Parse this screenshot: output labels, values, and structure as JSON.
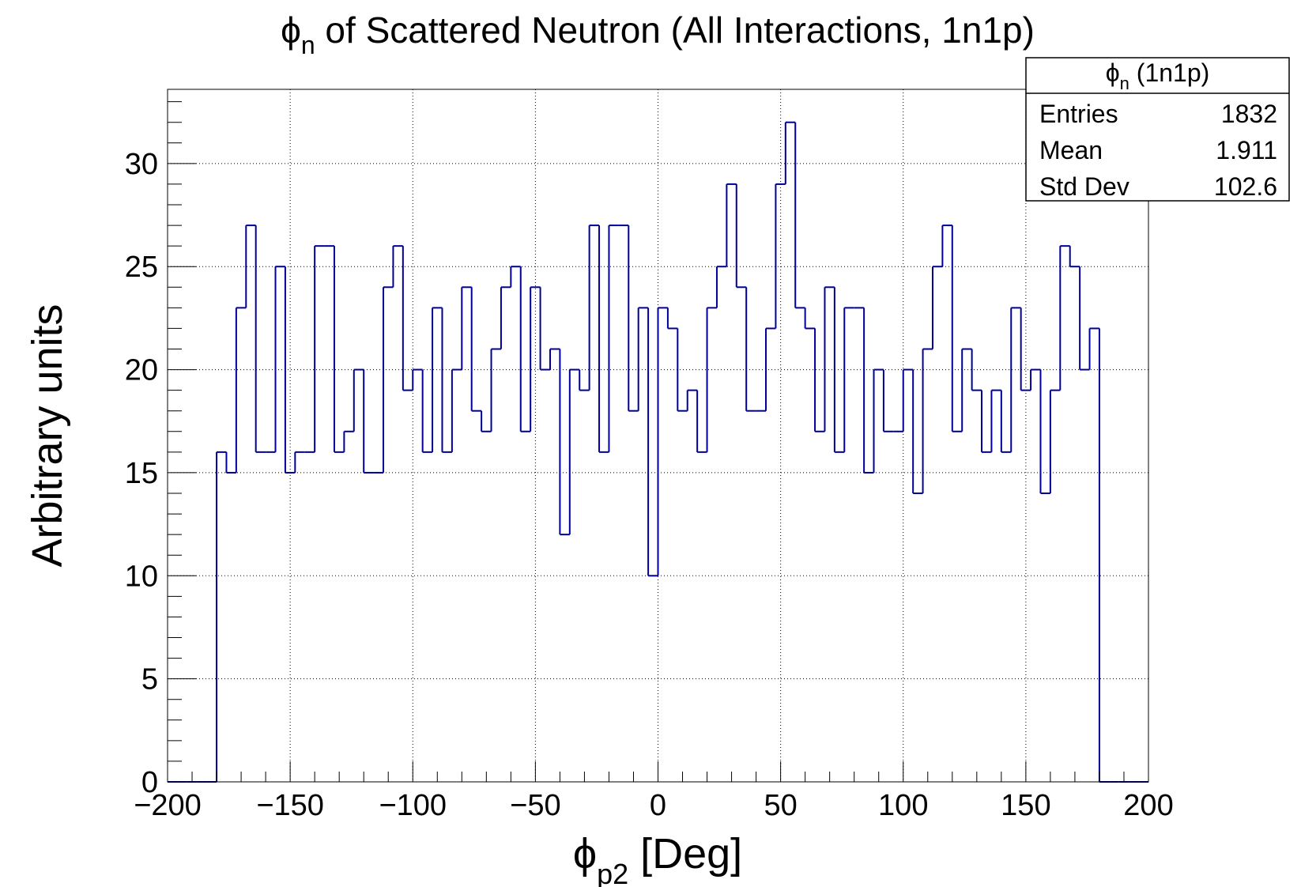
{
  "chart_data": {
    "type": "histogram",
    "title": {
      "symbol": "ϕ",
      "subscript": "n",
      "text": " of Scattered Neutron (All Interactions, 1n1p)"
    },
    "x_label": {
      "symbol": "ϕ",
      "subscript": "p2",
      "text": " [Deg]"
    },
    "y_label": "Arbitrary units",
    "color": "#000099",
    "grid": true,
    "bins": [
      -200,
      -196,
      -192,
      -188,
      -184,
      -180,
      -176,
      -172,
      -168,
      -164,
      -160,
      -156,
      -152,
      -148,
      -144,
      -140,
      -136,
      -132,
      -128,
      -124,
      -120,
      -116,
      -112,
      -108,
      -104,
      -100,
      -96,
      -92,
      -88,
      -84,
      -80,
      -76,
      -72,
      -68,
      -64,
      -60,
      -56,
      -52,
      -48,
      -44,
      -40,
      -36,
      -32,
      -28,
      -24,
      -20,
      -16,
      -12,
      -8,
      -4,
      0,
      4,
      8,
      12,
      16,
      20,
      24,
      28,
      32,
      36,
      40,
      44,
      48,
      52,
      56,
      60,
      64,
      68,
      72,
      76,
      80,
      84,
      88,
      92,
      96,
      100,
      104,
      108,
      112,
      116,
      120,
      124,
      128,
      132,
      136,
      140,
      144,
      148,
      152,
      156,
      160,
      164,
      168,
      172,
      176,
      180,
      184,
      188,
      192,
      196,
      200
    ],
    "values": [
      0,
      0,
      0,
      0,
      0,
      16,
      15,
      23,
      27,
      16,
      16,
      25,
      15,
      16,
      16,
      26,
      26,
      16,
      17,
      20,
      15,
      15,
      24,
      26,
      19,
      20,
      16,
      23,
      16,
      20,
      24,
      18,
      17,
      21,
      24,
      25,
      17,
      24,
      20,
      21,
      12,
      20,
      19,
      27,
      16,
      27,
      27,
      18,
      23,
      10,
      23,
      22,
      18,
      19,
      16,
      23,
      25,
      29,
      24,
      18,
      18,
      22,
      29,
      32,
      23,
      22,
      17,
      24,
      16,
      23,
      23,
      15,
      20,
      17,
      17,
      20,
      14,
      21,
      25,
      27,
      17,
      21,
      19,
      16,
      19,
      16,
      23,
      19,
      20,
      14,
      19,
      26,
      25,
      20,
      22,
      0,
      0,
      0,
      0,
      0
    ],
    "xlim": [
      -200,
      200
    ],
    "ylim": [
      0,
      33.6
    ],
    "xticks": [
      {
        "value": -200,
        "label": "−200"
      },
      {
        "value": -150,
        "label": "−150"
      },
      {
        "value": -100,
        "label": "−100"
      },
      {
        "value": -50,
        "label": "−50"
      },
      0,
      50,
      100,
      150,
      200
    ],
    "yticks": [
      0,
      5,
      10,
      15,
      20,
      25,
      30
    ],
    "xminorticks": [
      -190,
      -180,
      -170,
      -160,
      -140,
      -130,
      -120,
      -110,
      -90,
      -80,
      -70,
      -60,
      -40,
      -30,
      -20,
      -10,
      10,
      20,
      30,
      40,
      60,
      70,
      80,
      90,
      110,
      120,
      130,
      140,
      160,
      170,
      180,
      190
    ],
    "yminorticks": [
      1,
      2,
      3,
      4,
      6,
      7,
      8,
      9,
      11,
      12,
      13,
      14,
      16,
      17,
      18,
      19,
      21,
      22,
      23,
      24,
      26,
      27,
      28,
      29,
      31,
      32,
      33
    ],
    "stats": {
      "title": {
        "symbol": "ϕ",
        "subscript": "n",
        "text": " (1n1p)"
      },
      "rows": [
        [
          "Entries",
          1832
        ],
        [
          "Mean",
          1.911
        ],
        [
          "Std Dev",
          102.6
        ]
      ]
    }
  }
}
